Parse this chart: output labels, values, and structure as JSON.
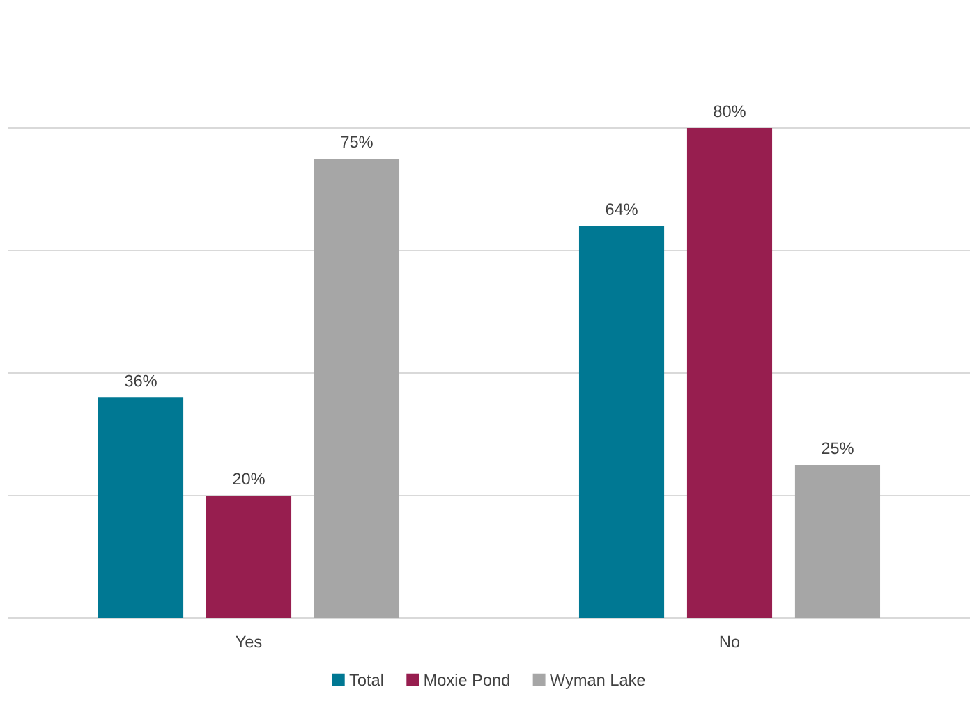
{
  "chart_data": {
    "type": "bar",
    "categories": [
      "Yes",
      "No"
    ],
    "series": [
      {
        "name": "Total",
        "color": "#007893",
        "values": [
          36,
          64
        ],
        "value_labels": [
          "36%",
          "64%"
        ]
      },
      {
        "name": "Moxie Pond",
        "color": "#971e4f",
        "values": [
          20,
          80
        ],
        "value_labels": [
          "20%",
          "80%"
        ]
      },
      {
        "name": "Wyman Lake",
        "color": "#a6a6a6",
        "values": [
          75,
          25
        ],
        "value_labels": [
          "75%",
          "25%"
        ]
      }
    ],
    "grid": "y",
    "legend": "bottom",
    "tick_labels": "x"
  }
}
